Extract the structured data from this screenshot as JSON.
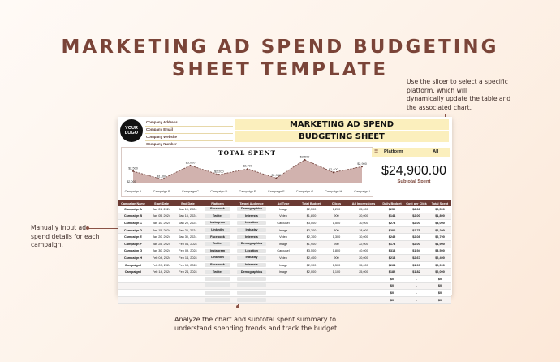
{
  "title": {
    "line1": "MARKETING AD SPEND BUDGETING",
    "line2": "SHEET TEMPLATE"
  },
  "notes": {
    "slicer": [
      "Use the slicer to select a specific",
      "platform, which will",
      "dynamically update the table and",
      "the associated chart."
    ],
    "manual": [
      "Manually input ad",
      "spend details for each",
      "campaign."
    ],
    "analyze": [
      "Analyze the chart and subtotal spent summary to",
      "understand spending trends and track the budget."
    ]
  },
  "sheet": {
    "logo": [
      "YOUR",
      "LOGO"
    ],
    "company": [
      "Company Address",
      "Company Email",
      "Company Website",
      "Company Number"
    ],
    "header1": "MARKETING AD SPEND",
    "header2": "BUDGETING SHEET",
    "chart_title": "TOTAL SPENT",
    "slicer_label": "Platform",
    "slicer_value": "All",
    "subtotal_value": "$24,900.00",
    "subtotal_label": "Subtotal Spent",
    "columns": [
      "Campaign Name",
      "Start Date",
      "End Date",
      "Platform",
      "Target Audience",
      "Ad Type",
      "Total Budget",
      "Clicks",
      "Ad Impressions",
      "Daily Budget",
      "Cost per Click",
      "Total Spent"
    ],
    "rows": [
      [
        "Campaign A",
        "Jan 01, 2024",
        "Jan 10, 2024",
        "Facebook",
        "Demographics",
        "Image",
        "$2,500",
        "1,200",
        "25,000",
        "$250",
        "$2.08",
        "$2,500"
      ],
      [
        "Campaign B",
        "Jan 05, 2024",
        "Jan 15, 2024",
        "Twitter",
        "Interests",
        "Video",
        "$1,800",
        "900",
        "20,000",
        "$144",
        "$2.00",
        "$1,800"
      ],
      [
        "Campaign C",
        "Jan 10, 2024",
        "Jan 20, 2024",
        "Instagram",
        "Location",
        "Carousel",
        "$3,000",
        "1,500",
        "30,000",
        "$273",
        "$2.00",
        "$3,000"
      ],
      [
        "Campaign D",
        "Jan 15, 2024",
        "Jan 25, 2024",
        "LinkedIn",
        "Industry",
        "Image",
        "$2,200",
        "800",
        "18,000",
        "$200",
        "$2.75",
        "$2,200"
      ],
      [
        "Campaign E",
        "Jan 20, 2024",
        "Jan 30, 2024",
        "Facebook",
        "Interests",
        "Video",
        "$2,700",
        "1,300",
        "30,000",
        "$245",
        "$2.08",
        "$2,700"
      ],
      [
        "Campaign F",
        "Jan 25, 2024",
        "Feb 04, 2024",
        "Twitter",
        "Demographics",
        "Image",
        "$1,900",
        "950",
        "22,000",
        "$173",
        "$2.00",
        "$1,900"
      ],
      [
        "Campaign G",
        "Jan 30, 2024",
        "Feb 09, 2024",
        "Instagram",
        "Location",
        "Carousel",
        "$3,500",
        "1,800",
        "40,000",
        "$318",
        "$1.94",
        "$3,500"
      ],
      [
        "Campaign H",
        "Feb 04, 2024",
        "Feb 14, 2024",
        "LinkedIn",
        "Industry",
        "Video",
        "$2,400",
        "900",
        "20,000",
        "$218",
        "$2.67",
        "$2,400"
      ],
      [
        "Campaign I",
        "Feb 09, 2024",
        "Feb 19, 2024",
        "Facebook",
        "Interests",
        "Image",
        "$2,900",
        "1,500",
        "35,000",
        "$264",
        "$1.93",
        "$2,900"
      ],
      [
        "Campaign I",
        "Feb 14, 2024",
        "Feb 24, 2024",
        "Twitter",
        "Demographics",
        "Image",
        "$2,000",
        "1,100",
        "25,000",
        "$182",
        "$1.82",
        "$2,000"
      ],
      [
        "",
        "",
        "",
        "",
        "",
        "",
        "",
        "",
        "",
        "$0",
        "-",
        "$0"
      ],
      [
        "",
        "",
        "",
        "",
        "",
        "",
        "",
        "",
        "",
        "$0",
        "-",
        "$0"
      ],
      [
        "",
        "",
        "",
        "",
        "",
        "",
        "",
        "",
        "",
        "$0",
        "-",
        "$0"
      ],
      [
        "",
        "",
        "",
        "",
        "",
        "",
        "",
        "",
        "",
        "$0",
        "-",
        "$0"
      ]
    ]
  },
  "chart_data": {
    "type": "area",
    "title": "TOTAL SPENT",
    "categories": [
      "Campaign A",
      "Campaign B",
      "Campaign C",
      "Campaign D",
      "Campaign E",
      "Campaign F",
      "Campaign G",
      "Campaign H",
      "Campaign I"
    ],
    "values": [
      2500,
      1800,
      3000,
      2200,
      2700,
      1900,
      3500,
      2400,
      2900
    ],
    "labels": [
      "$2,500",
      "$1,800",
      "$3,000",
      "$2,200",
      "$2,700",
      "$1,900",
      "$3,500",
      "$2,400",
      "$2,900"
    ],
    "extra_label": "$2,000",
    "ylim": [
      1500,
      3700
    ],
    "colors": {
      "fill": "#c9a5a0",
      "line": "#6b3a33"
    }
  }
}
